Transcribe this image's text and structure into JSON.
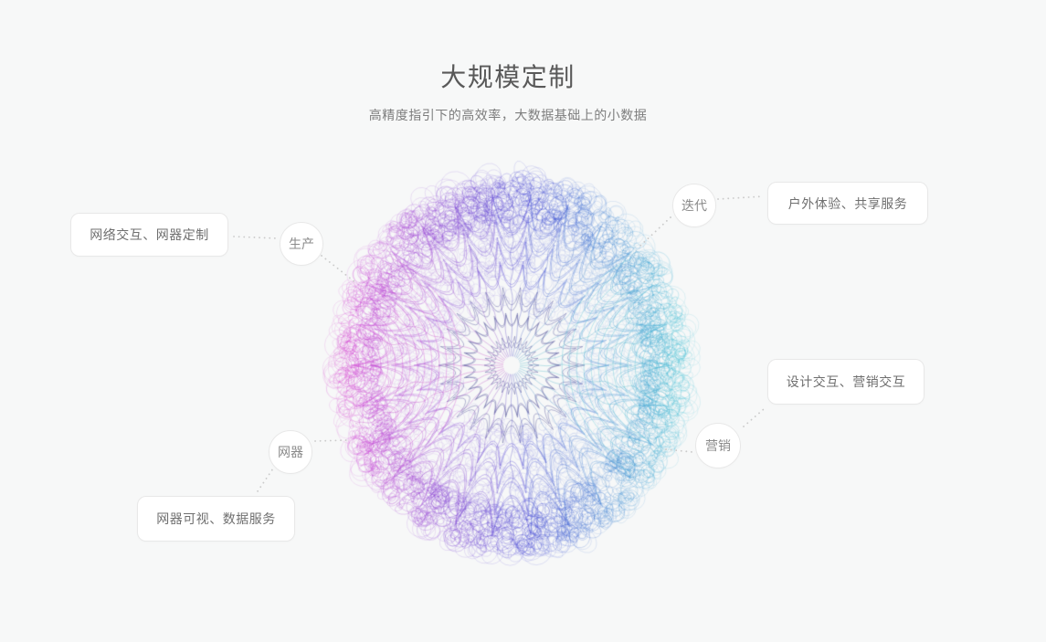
{
  "header": {
    "title": "大规模定制",
    "subtitle": "高精度指引下的高效率，大数据基础上的小数据"
  },
  "diagram": {
    "nodes": [
      {
        "id": "production",
        "label": "生产"
      },
      {
        "id": "iteration",
        "label": "迭代"
      },
      {
        "id": "device",
        "label": "网器"
      },
      {
        "id": "marketing",
        "label": "营销"
      }
    ],
    "labels": [
      {
        "id": "network-interaction",
        "text": "网络交互、网器定制"
      },
      {
        "id": "outdoor-experience",
        "text": "户外体验、共享服务"
      },
      {
        "id": "design-interaction",
        "text": "设计交互、营销交互"
      },
      {
        "id": "device-visualization",
        "text": "网器可视、数据服务"
      }
    ],
    "colors": {
      "sphere_magenta": "#bb56c2",
      "sphere_indigo": "#5458ab",
      "sphere_cyan": "#4accd8",
      "connector_dots": "#cbcbcb",
      "box_border": "#e8e8e8",
      "text_gray": "#6f6f6f"
    }
  }
}
